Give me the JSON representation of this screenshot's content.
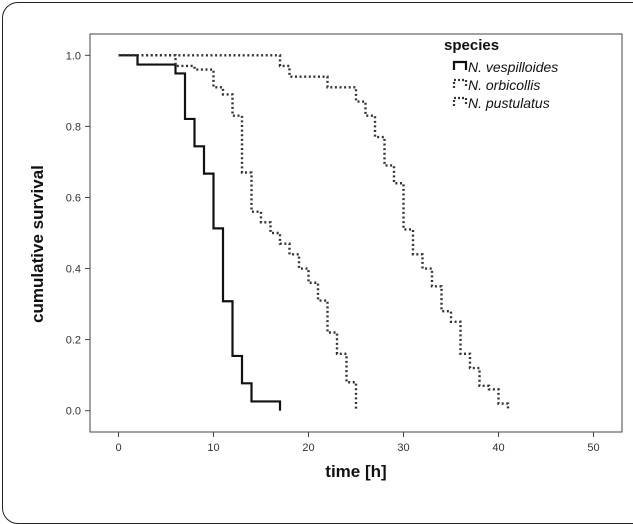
{
  "chart_data": {
    "type": "line",
    "xlabel": "time [h]",
    "ylabel": "cumulative survival",
    "xlim": [
      -3,
      53
    ],
    "ylim": [
      -0.06,
      1.06
    ],
    "x_ticks": [
      "0",
      "10",
      "20",
      "30",
      "40",
      "50"
    ],
    "y_ticks": [
      "0.0",
      "0.2",
      "0.4",
      "0.6",
      "0.8",
      "1.0"
    ],
    "grid": false,
    "legend": {
      "title": "species",
      "placement": "top-right"
    },
    "series": [
      {
        "name": "N. vespilloides",
        "color": "#111111",
        "style": "solid",
        "steps": [
          [
            0,
            1.0
          ],
          [
            2,
            0.974
          ],
          [
            6,
            0.949
          ],
          [
            7,
            0.821
          ],
          [
            8,
            0.744
          ],
          [
            9,
            0.667
          ],
          [
            10,
            0.513
          ],
          [
            11,
            0.308
          ],
          [
            12,
            0.154
          ],
          [
            13,
            0.077
          ],
          [
            14,
            0.026
          ],
          [
            17,
            0.0
          ]
        ]
      },
      {
        "name": "N. orbicollis",
        "color": "#333333",
        "style": "dotted",
        "steps": [
          [
            0,
            1.0
          ],
          [
            6,
            0.97
          ],
          [
            8,
            0.96
          ],
          [
            10,
            0.91
          ],
          [
            11,
            0.89
          ],
          [
            12,
            0.83
          ],
          [
            13,
            0.67
          ],
          [
            14,
            0.56
          ],
          [
            15,
            0.53
          ],
          [
            16,
            0.5
          ],
          [
            17,
            0.47
          ],
          [
            18,
            0.44
          ],
          [
            19,
            0.4
          ],
          [
            20,
            0.36
          ],
          [
            21,
            0.31
          ],
          [
            22,
            0.22
          ],
          [
            23,
            0.16
          ],
          [
            24,
            0.08
          ],
          [
            25,
            0.0
          ]
        ]
      },
      {
        "name": "N. pustulatus",
        "color": "#333333",
        "style": "dotted",
        "steps": [
          [
            0,
            1.0
          ],
          [
            16,
            1.0
          ],
          [
            17,
            0.97
          ],
          [
            18,
            0.94
          ],
          [
            22,
            0.91
          ],
          [
            25,
            0.87
          ],
          [
            26,
            0.83
          ],
          [
            27,
            0.77
          ],
          [
            28,
            0.69
          ],
          [
            29,
            0.64
          ],
          [
            30,
            0.51
          ],
          [
            31,
            0.44
          ],
          [
            32,
            0.4
          ],
          [
            33,
            0.35
          ],
          [
            34,
            0.28
          ],
          [
            35,
            0.25
          ],
          [
            36,
            0.16
          ],
          [
            37,
            0.12
          ],
          [
            38,
            0.07
          ],
          [
            39,
            0.06
          ],
          [
            40,
            0.02
          ],
          [
            41,
            0.0
          ]
        ]
      }
    ]
  }
}
